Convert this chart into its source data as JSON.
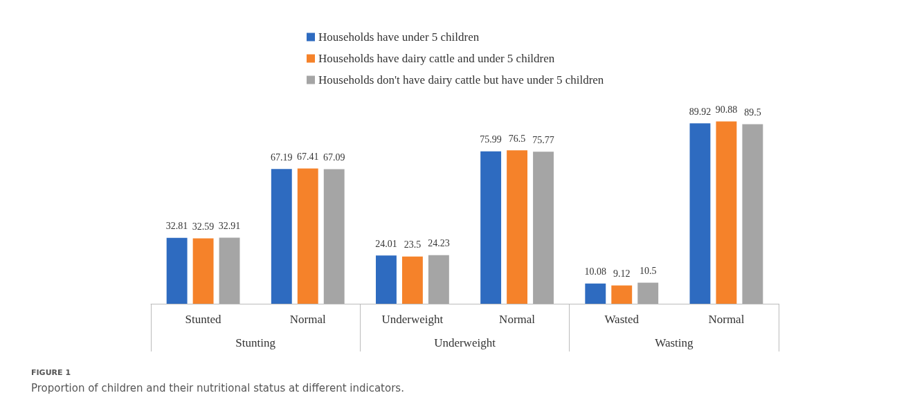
{
  "chart_data": {
    "type": "bar",
    "title": "FIGURE 1",
    "subtitle": "Proportion of children and their nutritional status at different indicators.",
    "categories": [
      "Stunted",
      "Normal",
      "Underweight",
      "Normal",
      "Wasted",
      "Normal"
    ],
    "annotations": [
      "Stunting",
      "Underweight",
      "Wasting"
    ],
    "series": [
      {
        "name": "Households have under 5 children",
        "color": "#2e6bc0",
        "values": [
          32.81,
          67.19,
          24.01,
          75.99,
          10.08,
          89.92
        ]
      },
      {
        "name": "Households have dairy cattle and under 5 children",
        "color": "#f5822a",
        "values": [
          32.59,
          67.41,
          23.5,
          76.5,
          9.12,
          90.88
        ]
      },
      {
        "name": "Households don't have dairy cattle but have under 5 children",
        "color": "#a5a5a5",
        "values": [
          32.91,
          67.09,
          24.23,
          75.77,
          10.5,
          89.5
        ]
      }
    ],
    "data_labels": true,
    "legend": "top"
  }
}
